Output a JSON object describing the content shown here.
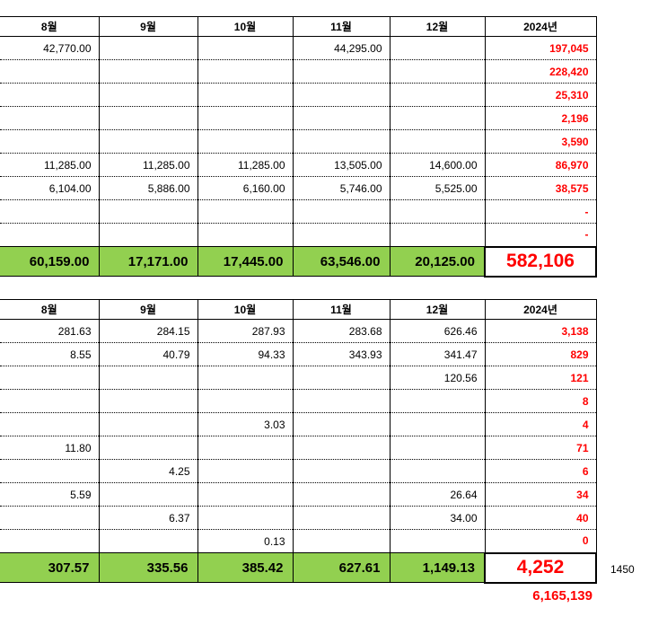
{
  "columns": [
    "8월",
    "9월",
    "10월",
    "11월",
    "12월",
    "2024년"
  ],
  "table1": {
    "rows": [
      [
        "42,770.00",
        "",
        "",
        "44,295.00",
        "",
        "197,045"
      ],
      [
        "",
        "",
        "",
        "",
        "",
        "228,420"
      ],
      [
        "",
        "",
        "",
        "",
        "",
        "25,310"
      ],
      [
        "",
        "",
        "",
        "",
        "",
        "2,196"
      ],
      [
        "",
        "",
        "",
        "",
        "",
        "3,590"
      ],
      [
        "11,285.00",
        "11,285.00",
        "11,285.00",
        "13,505.00",
        "14,600.00",
        "86,970"
      ],
      [
        "6,104.00",
        "5,886.00",
        "6,160.00",
        "5,746.00",
        "5,525.00",
        "38,575"
      ],
      [
        "",
        "",
        "",
        "",
        "",
        "-"
      ],
      [
        "",
        "",
        "",
        "",
        "",
        "-"
      ]
    ],
    "totals": [
      "60,159.00",
      "17,171.00",
      "17,445.00",
      "63,546.00",
      "20,125.00",
      "582,106"
    ]
  },
  "table2": {
    "rows": [
      [
        "281.63",
        "284.15",
        "287.93",
        "283.68",
        "626.46",
        "3,138"
      ],
      [
        "8.55",
        "40.79",
        "94.33",
        "343.93",
        "341.47",
        "829"
      ],
      [
        "",
        "",
        "",
        "",
        "120.56",
        "121"
      ],
      [
        "",
        "",
        "",
        "",
        "",
        "8"
      ],
      [
        "",
        "",
        "3.03",
        "",
        "",
        "4"
      ],
      [
        "11.80",
        "",
        "",
        "",
        "",
        "71"
      ],
      [
        "",
        "4.25",
        "",
        "",
        "",
        "6"
      ],
      [
        "5.59",
        "",
        "",
        "",
        "26.64",
        "34"
      ],
      [
        "",
        "6.37",
        "",
        "",
        "34.00",
        "40"
      ],
      [
        "",
        "",
        "0.13",
        "",
        "",
        "0"
      ]
    ],
    "totals": [
      "307.57",
      "335.56",
      "385.42",
      "627.61",
      "1,149.13",
      "4,252"
    ]
  },
  "side_note": "1450",
  "overall_total": "6,165,139"
}
